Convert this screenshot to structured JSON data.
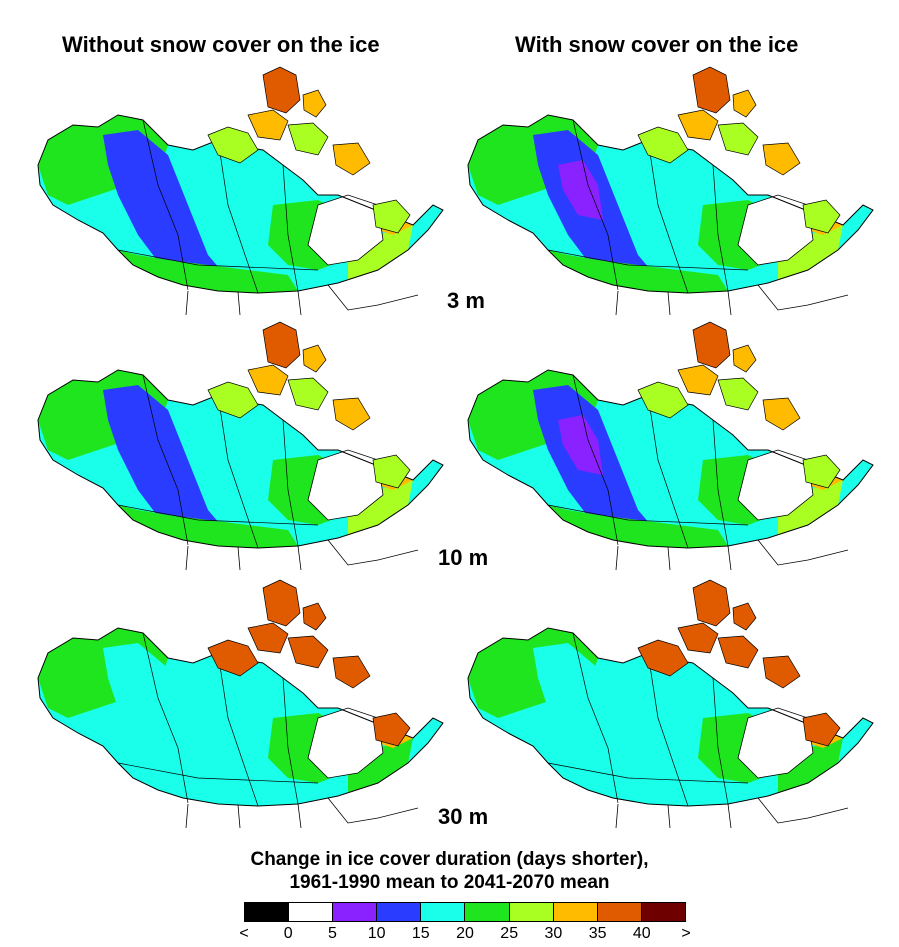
{
  "columns": {
    "left": "Without snow cover on the ice",
    "right": "With snow cover on the ice"
  },
  "rows": [
    "3 m",
    "10 m",
    "30 m"
  ],
  "legend": {
    "title_line1": "Change in ice cover duration (days shorter),",
    "title_line2": "1961-1990 mean to 2041-2070 mean",
    "ticks": [
      "<",
      "0",
      "5",
      "10",
      "15",
      "20",
      "25",
      "30",
      "35",
      "40",
      ">"
    ],
    "colors": [
      "#000000",
      "#ffffff",
      "#8a22ff",
      "#2a3cff",
      "#19ffea",
      "#1fe51f",
      "#aaff22",
      "#ffbb00",
      "#e05a00",
      "#6e0000"
    ]
  }
}
